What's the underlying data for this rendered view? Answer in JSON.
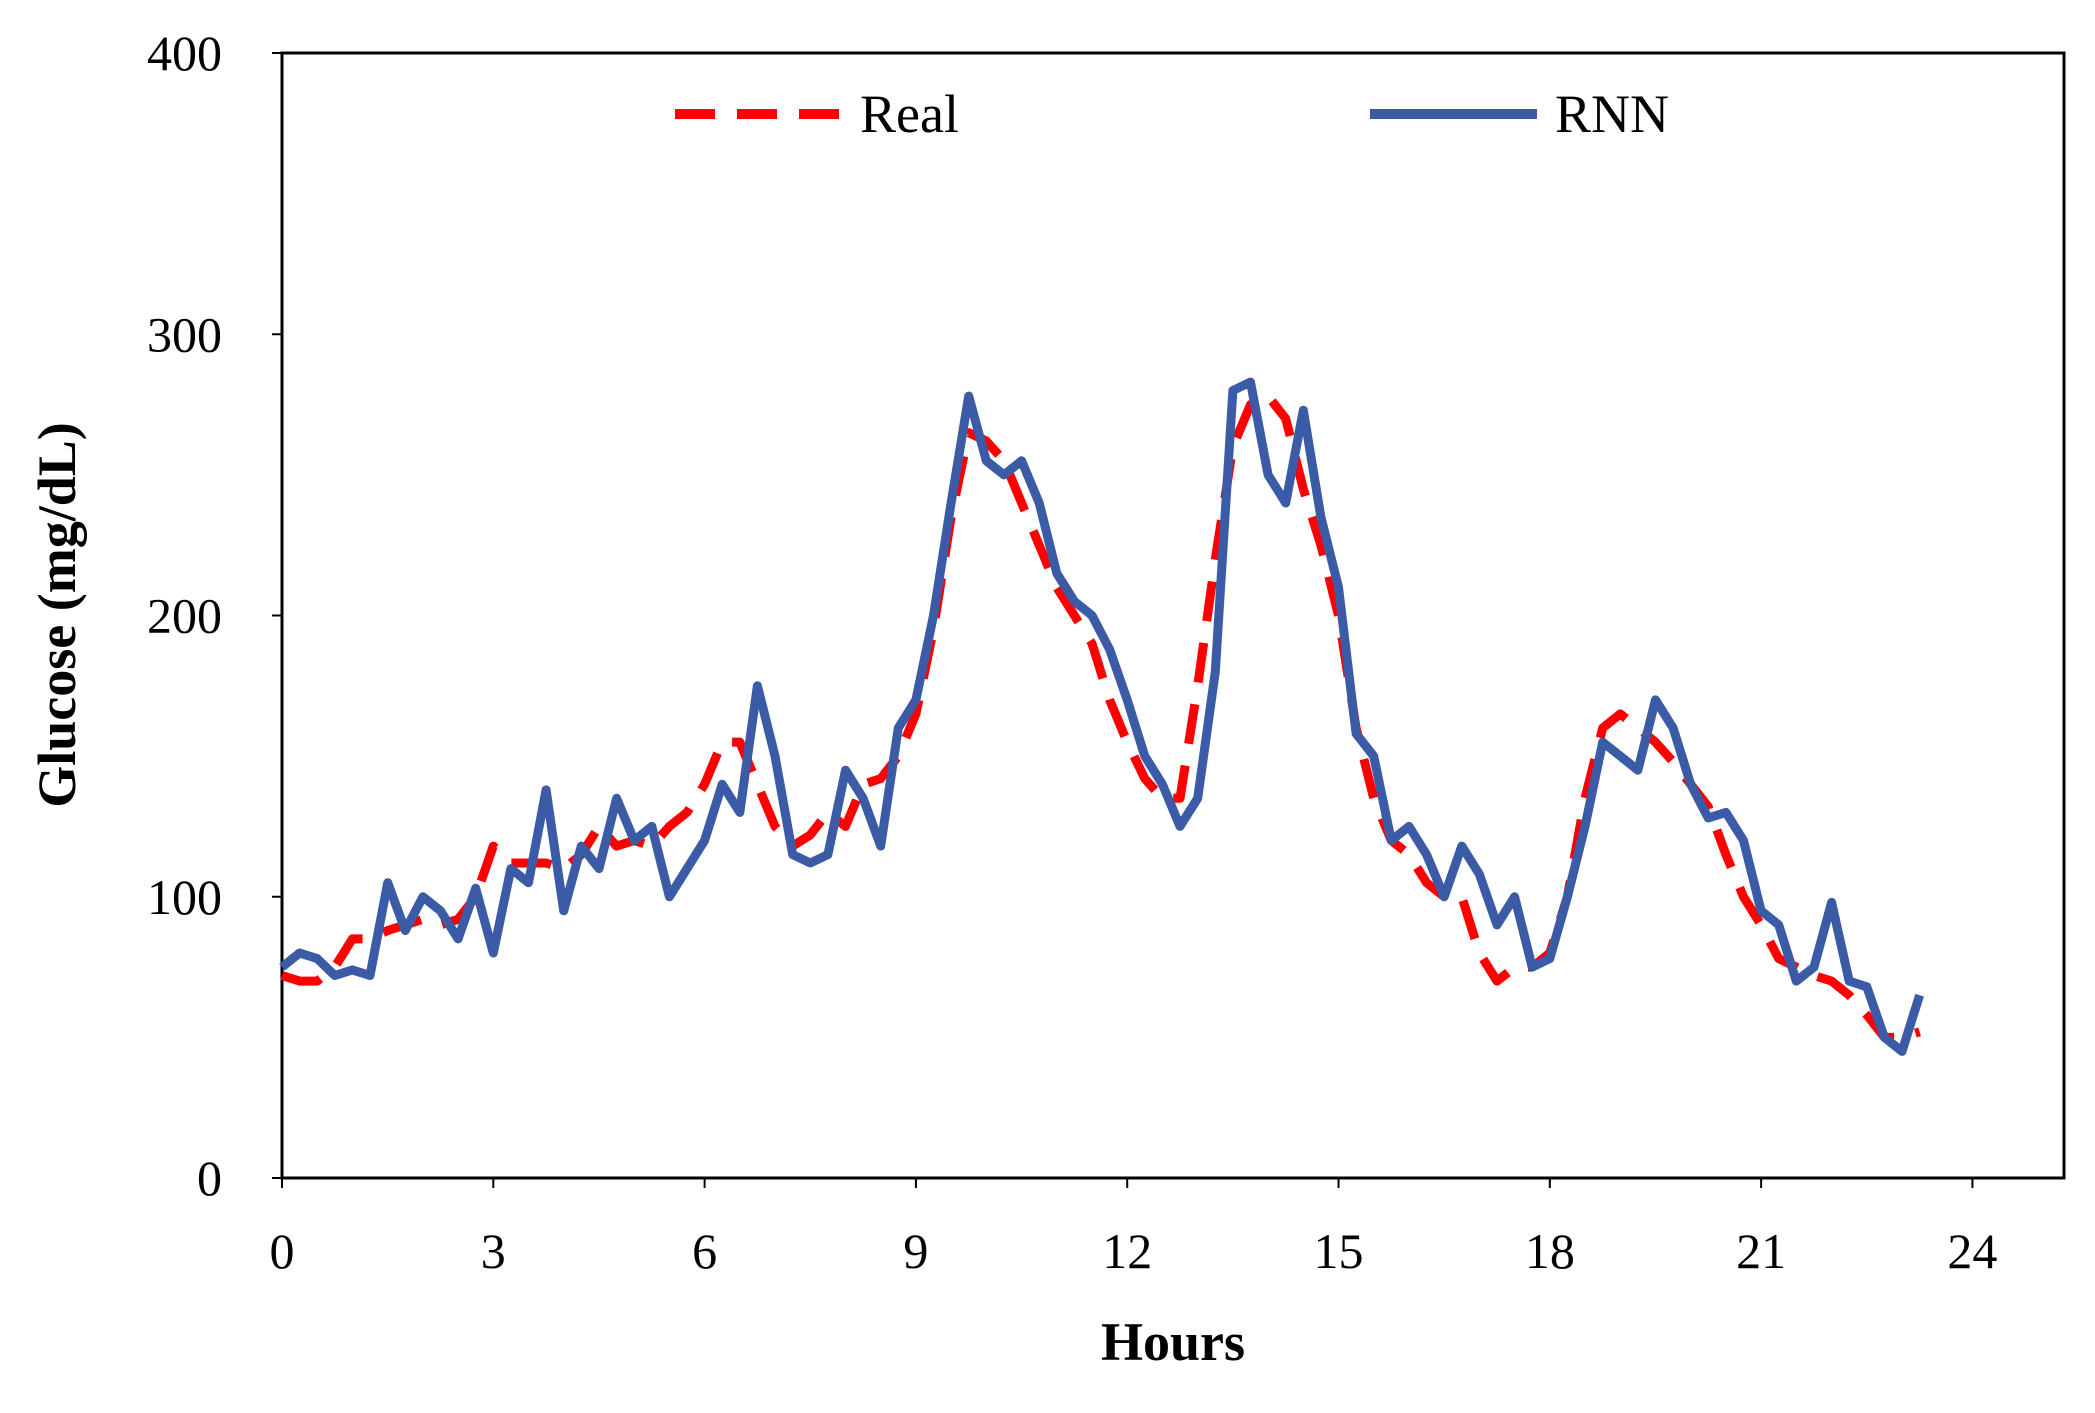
{
  "chart_data": {
    "type": "line",
    "x_label": "Hours",
    "y_label": "Glucose (mg/dL)",
    "x": [
      0,
      0.25,
      0.5,
      0.75,
      1,
      1.25,
      1.5,
      1.75,
      2,
      2.25,
      2.5,
      2.75,
      3,
      3.25,
      3.5,
      3.75,
      4,
      4.25,
      4.5,
      4.75,
      5,
      5.25,
      5.5,
      5.75,
      6,
      6.25,
      6.5,
      6.75,
      7,
      7.25,
      7.5,
      7.75,
      8,
      8.25,
      8.5,
      8.75,
      9,
      9.25,
      9.5,
      9.75,
      10,
      10.25,
      10.5,
      10.75,
      11,
      11.25,
      11.5,
      11.75,
      12,
      12.25,
      12.5,
      12.75,
      13,
      13.25,
      13.5,
      13.75,
      14,
      14.25,
      14.5,
      14.75,
      15,
      15.25,
      15.5,
      15.75,
      16,
      16.25,
      16.5,
      16.75,
      17,
      17.25,
      17.5,
      17.75,
      18,
      18.25,
      18.5,
      18.75,
      19,
      19.25,
      19.5,
      19.75,
      20,
      20.25,
      20.5,
      20.75,
      21,
      21.25,
      21.5,
      21.75,
      22,
      22.25,
      22.5,
      22.75,
      23,
      23.25
    ],
    "series": [
      {
        "name": "Real",
        "color": "#ff0000",
        "dash": true,
        "values": [
          72,
          70,
          70,
          75,
          85,
          85,
          88,
          90,
          92,
          90,
          92,
          100,
          118,
          112,
          112,
          112,
          110,
          115,
          125,
          118,
          120,
          118,
          125,
          130,
          140,
          155,
          155,
          140,
          125,
          118,
          122,
          130,
          125,
          140,
          142,
          150,
          165,
          195,
          235,
          265,
          262,
          255,
          240,
          225,
          210,
          200,
          190,
          170,
          155,
          142,
          135,
          135,
          175,
          220,
          260,
          275,
          278,
          270,
          245,
          225,
          200,
          160,
          135,
          120,
          115,
          105,
          100,
          100,
          80,
          70,
          75,
          75,
          80,
          100,
          135,
          160,
          165,
          160,
          155,
          148,
          140,
          132,
          115,
          100,
          90,
          78,
          75,
          72,
          70,
          65,
          58,
          50,
          50,
          52
        ]
      },
      {
        "name": "RNN",
        "color": "#3b5ba7",
        "dash": false,
        "values": [
          75,
          80,
          78,
          72,
          74,
          72,
          105,
          88,
          100,
          95,
          85,
          103,
          80,
          110,
          105,
          138,
          95,
          118,
          110,
          135,
          120,
          125,
          100,
          110,
          120,
          140,
          130,
          175,
          150,
          115,
          112,
          115,
          145,
          135,
          118,
          160,
          170,
          200,
          240,
          278,
          255,
          250,
          255,
          240,
          215,
          205,
          200,
          188,
          170,
          150,
          140,
          125,
          135,
          180,
          280,
          283,
          250,
          240,
          273,
          235,
          210,
          158,
          150,
          120,
          125,
          115,
          100,
          118,
          108,
          90,
          100,
          75,
          78,
          100,
          125,
          155,
          150,
          145,
          170,
          160,
          140,
          128,
          130,
          120,
          95,
          90,
          70,
          75,
          98,
          70,
          68,
          50,
          45,
          65
        ]
      }
    ],
    "xlim": [
      0,
      25.3
    ],
    "xticks": [
      0,
      3,
      6,
      9,
      12,
      15,
      18,
      21,
      24
    ],
    "ylim": [
      0,
      400
    ],
    "yticks": [
      0,
      100,
      200,
      300,
      400
    ],
    "grid": false,
    "legend": "top"
  }
}
